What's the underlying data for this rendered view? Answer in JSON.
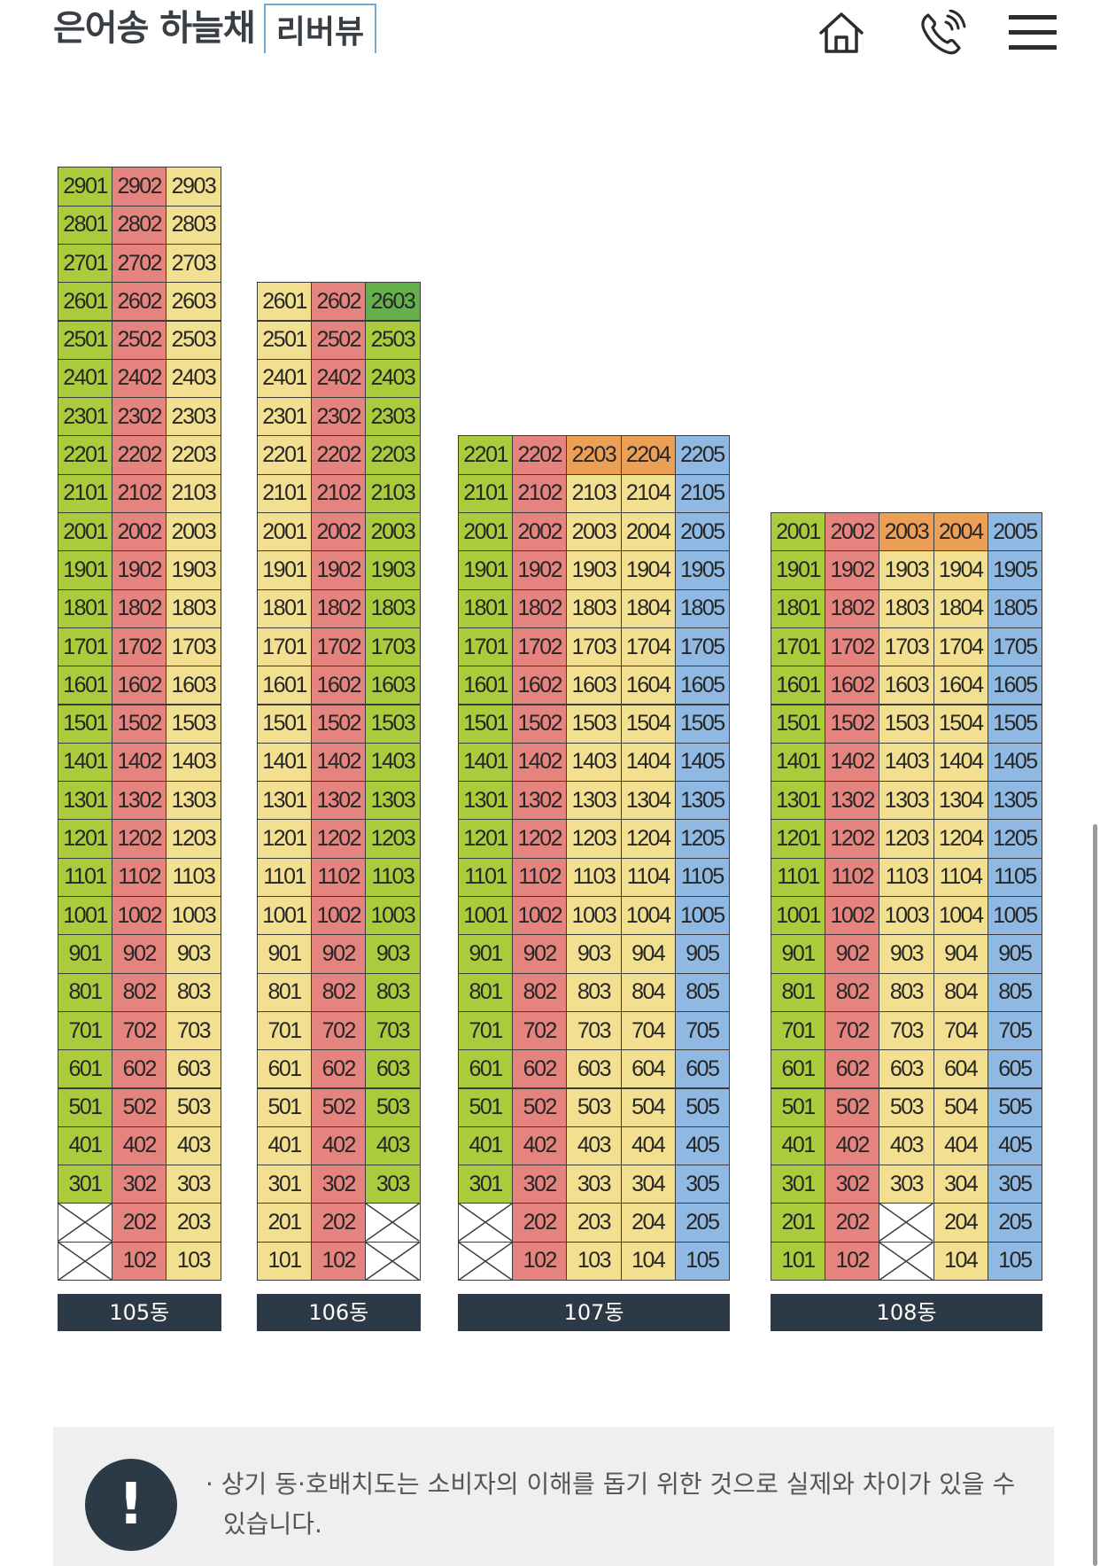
{
  "header": {
    "brand": "은어송 하늘채",
    "brand_sub": "리버뷰",
    "icons": [
      "home-icon",
      "phone-icon",
      "menu-icon"
    ]
  },
  "colors": {
    "green": "#a9cb3c",
    "red": "#e5837f",
    "yellow": "#f2df8f",
    "blue": "#8fb8e2",
    "orange": "#eba055",
    "dark_green": "#65b04a",
    "label_bg": "#2c3a47"
  },
  "buildings": [
    {
      "name": "105동",
      "floors": 29,
      "units": 3,
      "col_colors": [
        "green",
        "red",
        "yellow"
      ],
      "missing": [
        "101",
        "201"
      ],
      "overrides": {}
    },
    {
      "name": "106동",
      "floors": 26,
      "units": 3,
      "col_colors": [
        "yellow",
        "red",
        "green"
      ],
      "missing": [
        "103",
        "203"
      ],
      "overrides": {
        "2603": "dark_green"
      }
    },
    {
      "name": "107동",
      "floors": 22,
      "units": 5,
      "col_colors": [
        "green",
        "red",
        "yellow",
        "yellow",
        "blue"
      ],
      "missing": [
        "101",
        "201"
      ],
      "overrides": {
        "2203": "orange",
        "2204": "orange"
      }
    },
    {
      "name": "108동",
      "floors": 20,
      "units": 5,
      "col_colors": [
        "green",
        "red",
        "yellow",
        "yellow",
        "blue"
      ],
      "missing": [
        "103",
        "203"
      ],
      "overrides": {
        "2003": "orange",
        "2004": "orange"
      }
    }
  ],
  "notice": {
    "icon": "exclamation-icon",
    "icon_glyph": "!",
    "text": "· 상기 동·호배치도는 소비자의 이해를 돕기 위한 것으로 실제와 차이가 있을 수 있습니다."
  }
}
